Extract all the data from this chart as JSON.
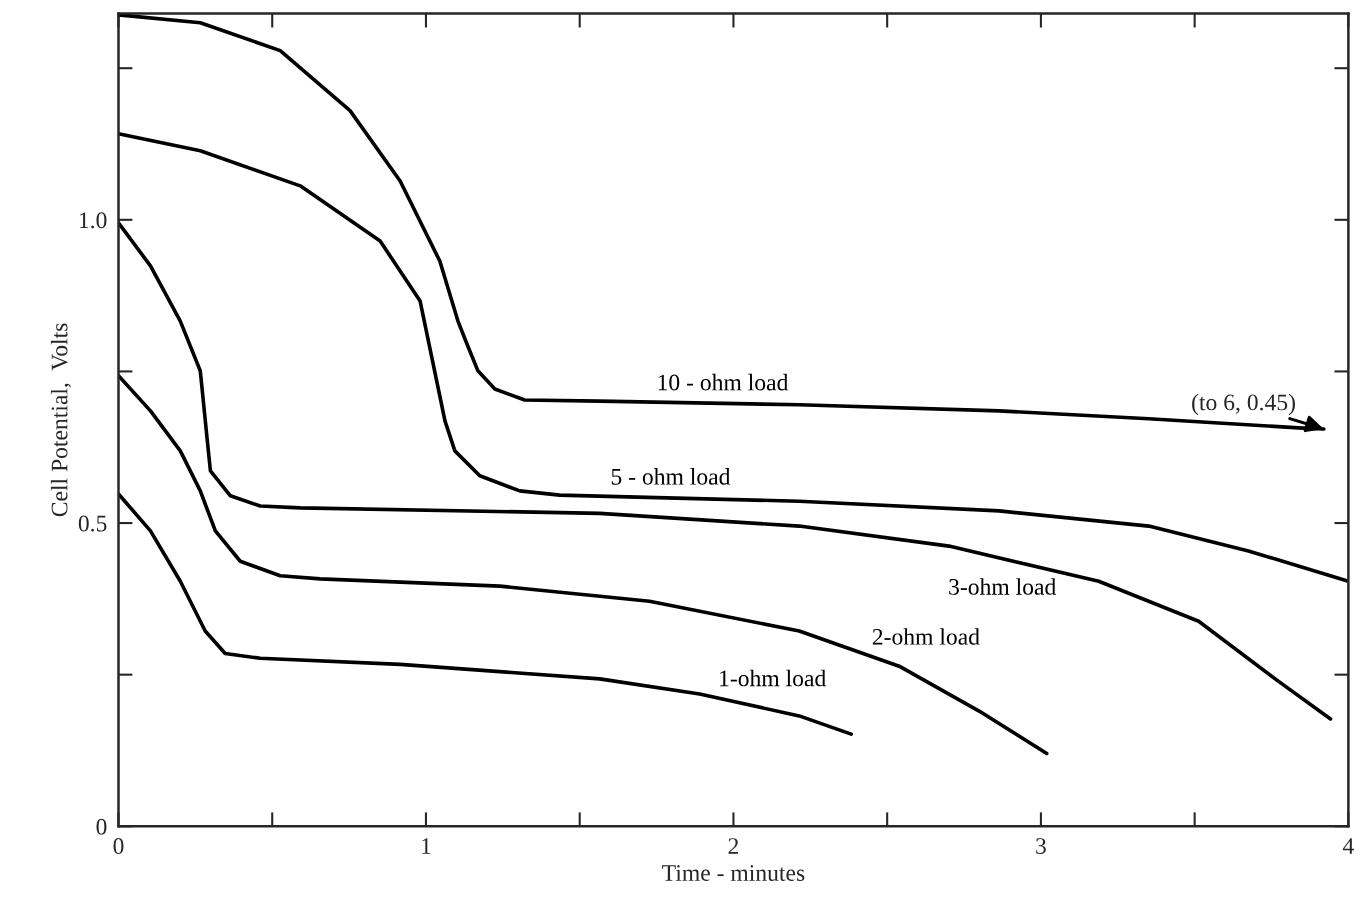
{
  "chart_data": {
    "type": "line",
    "xlabel": "Time - minutes",
    "ylabel": "Cell Potential,  Volts",
    "xlim": [
      0,
      4
    ],
    "ylim": [
      0,
      1.34
    ],
    "xticks": [
      0,
      {
        "value": 0.5,
        "label": null
      },
      1,
      {
        "value": 1.5,
        "label": null
      },
      2,
      {
        "value": 2.5,
        "label": null
      },
      3,
      {
        "value": 3.5,
        "label": null
      },
      4
    ],
    "yticks": [
      0,
      {
        "value": 0.25,
        "label": null
      },
      0.5,
      {
        "value": 0.75,
        "label": null
      },
      {
        "value": 1.0,
        "label": "1.0"
      },
      {
        "value": 1.25,
        "label": null
      }
    ],
    "grid": false,
    "legend": false,
    "marker": "none",
    "line_style": "solid",
    "annotations": [
      {
        "text": "(to 6, 0.45)",
        "x": 3.92,
        "y": 0.655
      }
    ],
    "series": [
      {
        "name": "10 - ohm load",
        "color": "#000000",
        "x": [
          0,
          0.266,
          0.526,
          0.753,
          0.916,
          1.045,
          1.104,
          1.136,
          1.169,
          1.224,
          1.321,
          1.565,
          2.214,
          2.864,
          3.351,
          3.838,
          3.92
        ],
        "values": [
          1.338,
          1.325,
          1.279,
          1.18,
          1.064,
          0.932,
          0.833,
          0.792,
          0.751,
          0.721,
          0.703,
          0.701,
          0.695,
          0.685,
          0.672,
          0.657,
          0.655
        ]
      },
      {
        "name": "5 - ohm load",
        "color": "#000000",
        "x": [
          0,
          0.266,
          0.591,
          0.851,
          0.981,
          1.062,
          1.094,
          1.175,
          1.305,
          1.435,
          2.214,
          2.864,
          3.351,
          3.675,
          4.0
        ],
        "values": [
          1.142,
          1.114,
          1.056,
          0.965,
          0.866,
          0.668,
          0.619,
          0.578,
          0.553,
          0.546,
          0.536,
          0.52,
          0.495,
          0.454,
          0.404
        ]
      },
      {
        "name": "3-ohm load",
        "color": "#000000",
        "x": [
          0,
          0.104,
          0.201,
          0.266,
          0.289,
          0.299,
          0.364,
          0.461,
          0.591,
          1.565,
          2.214,
          2.701,
          3.188,
          3.513,
          3.773,
          3.942
        ],
        "values": [
          0.995,
          0.924,
          0.833,
          0.751,
          0.635,
          0.586,
          0.545,
          0.528,
          0.525,
          0.516,
          0.495,
          0.462,
          0.404,
          0.338,
          0.239,
          0.177
        ]
      },
      {
        "name": "2-ohm load",
        "color": "#000000",
        "x": [
          0,
          0.104,
          0.201,
          0.266,
          0.315,
          0.396,
          0.526,
          0.656,
          1.24,
          1.727,
          2.214,
          2.539,
          2.799,
          3.019
        ],
        "values": [
          0.743,
          0.685,
          0.619,
          0.553,
          0.487,
          0.437,
          0.413,
          0.408,
          0.396,
          0.371,
          0.322,
          0.264,
          0.19,
          0.12
        ]
      },
      {
        "name": "1-ohm load",
        "color": "#000000",
        "x": [
          0,
          0.104,
          0.201,
          0.282,
          0.347,
          0.461,
          0.916,
          1.565,
          1.89,
          2.214,
          2.383
        ],
        "values": [
          0.548,
          0.487,
          0.404,
          0.322,
          0.285,
          0.277,
          0.267,
          0.243,
          0.218,
          0.182,
          0.152
        ]
      }
    ]
  }
}
